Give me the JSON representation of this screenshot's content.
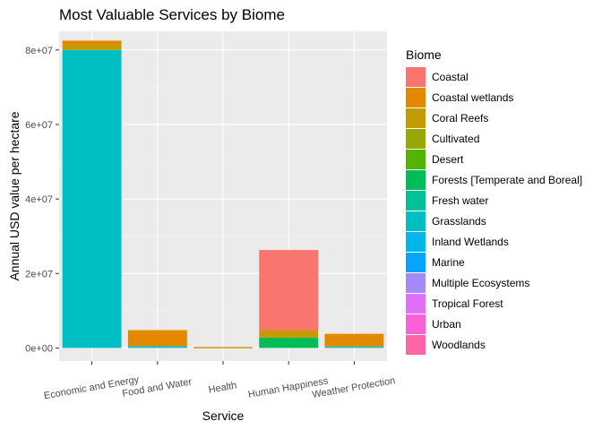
{
  "chart_data": {
    "type": "bar",
    "stacked": true,
    "title": "Most Valuable Services by Biome",
    "xlabel": "Service",
    "ylabel": "Annual USD value per hectare",
    "categories": [
      "Economic and Energy",
      "Food and Water",
      "Health",
      "Human Happiness",
      "Weather Protection"
    ],
    "ylim": [
      -3500000,
      85000000
    ],
    "yticks": [
      0,
      20000000,
      40000000,
      60000000,
      80000000
    ],
    "ytick_labels": [
      "0e+00",
      "2e+07",
      "4e+07",
      "6e+07",
      "8e+07"
    ],
    "legend_title": "Biome",
    "legend_position": "right",
    "grid": true,
    "series": [
      {
        "name": "Coastal",
        "color": "#F8766D",
        "values": [
          0,
          0,
          0,
          21500000,
          0
        ]
      },
      {
        "name": "Coastal wetlands",
        "color": "#E38900",
        "values": [
          1000000,
          4300000,
          150000,
          0,
          3400000
        ]
      },
      {
        "name": "Coral Reefs",
        "color": "#C49A00",
        "values": [
          1500000,
          0,
          100000,
          2000000,
          0
        ]
      },
      {
        "name": "Cultivated",
        "color": "#99A800",
        "values": [
          0,
          0,
          0,
          0,
          0
        ]
      },
      {
        "name": "Desert",
        "color": "#53B400",
        "values": [
          0,
          0,
          0,
          0,
          0
        ]
      },
      {
        "name": "Forests [Temperate and Boreal]",
        "color": "#00BC56",
        "values": [
          0,
          0,
          0,
          2800000,
          0
        ]
      },
      {
        "name": "Fresh water",
        "color": "#00C094",
        "values": [
          0,
          0,
          0,
          0,
          0
        ]
      },
      {
        "name": "Grasslands",
        "color": "#00BFC4",
        "values": [
          80000000,
          500000,
          0,
          0,
          400000
        ]
      },
      {
        "name": "Inland Wetlands",
        "color": "#00B6EB",
        "values": [
          0,
          0,
          0,
          0,
          0
        ]
      },
      {
        "name": "Marine",
        "color": "#06A4FF",
        "values": [
          0,
          0,
          0,
          0,
          0
        ]
      },
      {
        "name": "Multiple Ecosystems",
        "color": "#A58AFF",
        "values": [
          0,
          0,
          0,
          0,
          0
        ]
      },
      {
        "name": "Tropical Forest",
        "color": "#DF70F8",
        "values": [
          0,
          0,
          0,
          0,
          0
        ]
      },
      {
        "name": "Urban",
        "color": "#FB61D7",
        "values": [
          0,
          0,
          0,
          0,
          0
        ]
      },
      {
        "name": "Woodlands",
        "color": "#FF66A8",
        "values": [
          0,
          0,
          0,
          0,
          0
        ]
      }
    ]
  }
}
